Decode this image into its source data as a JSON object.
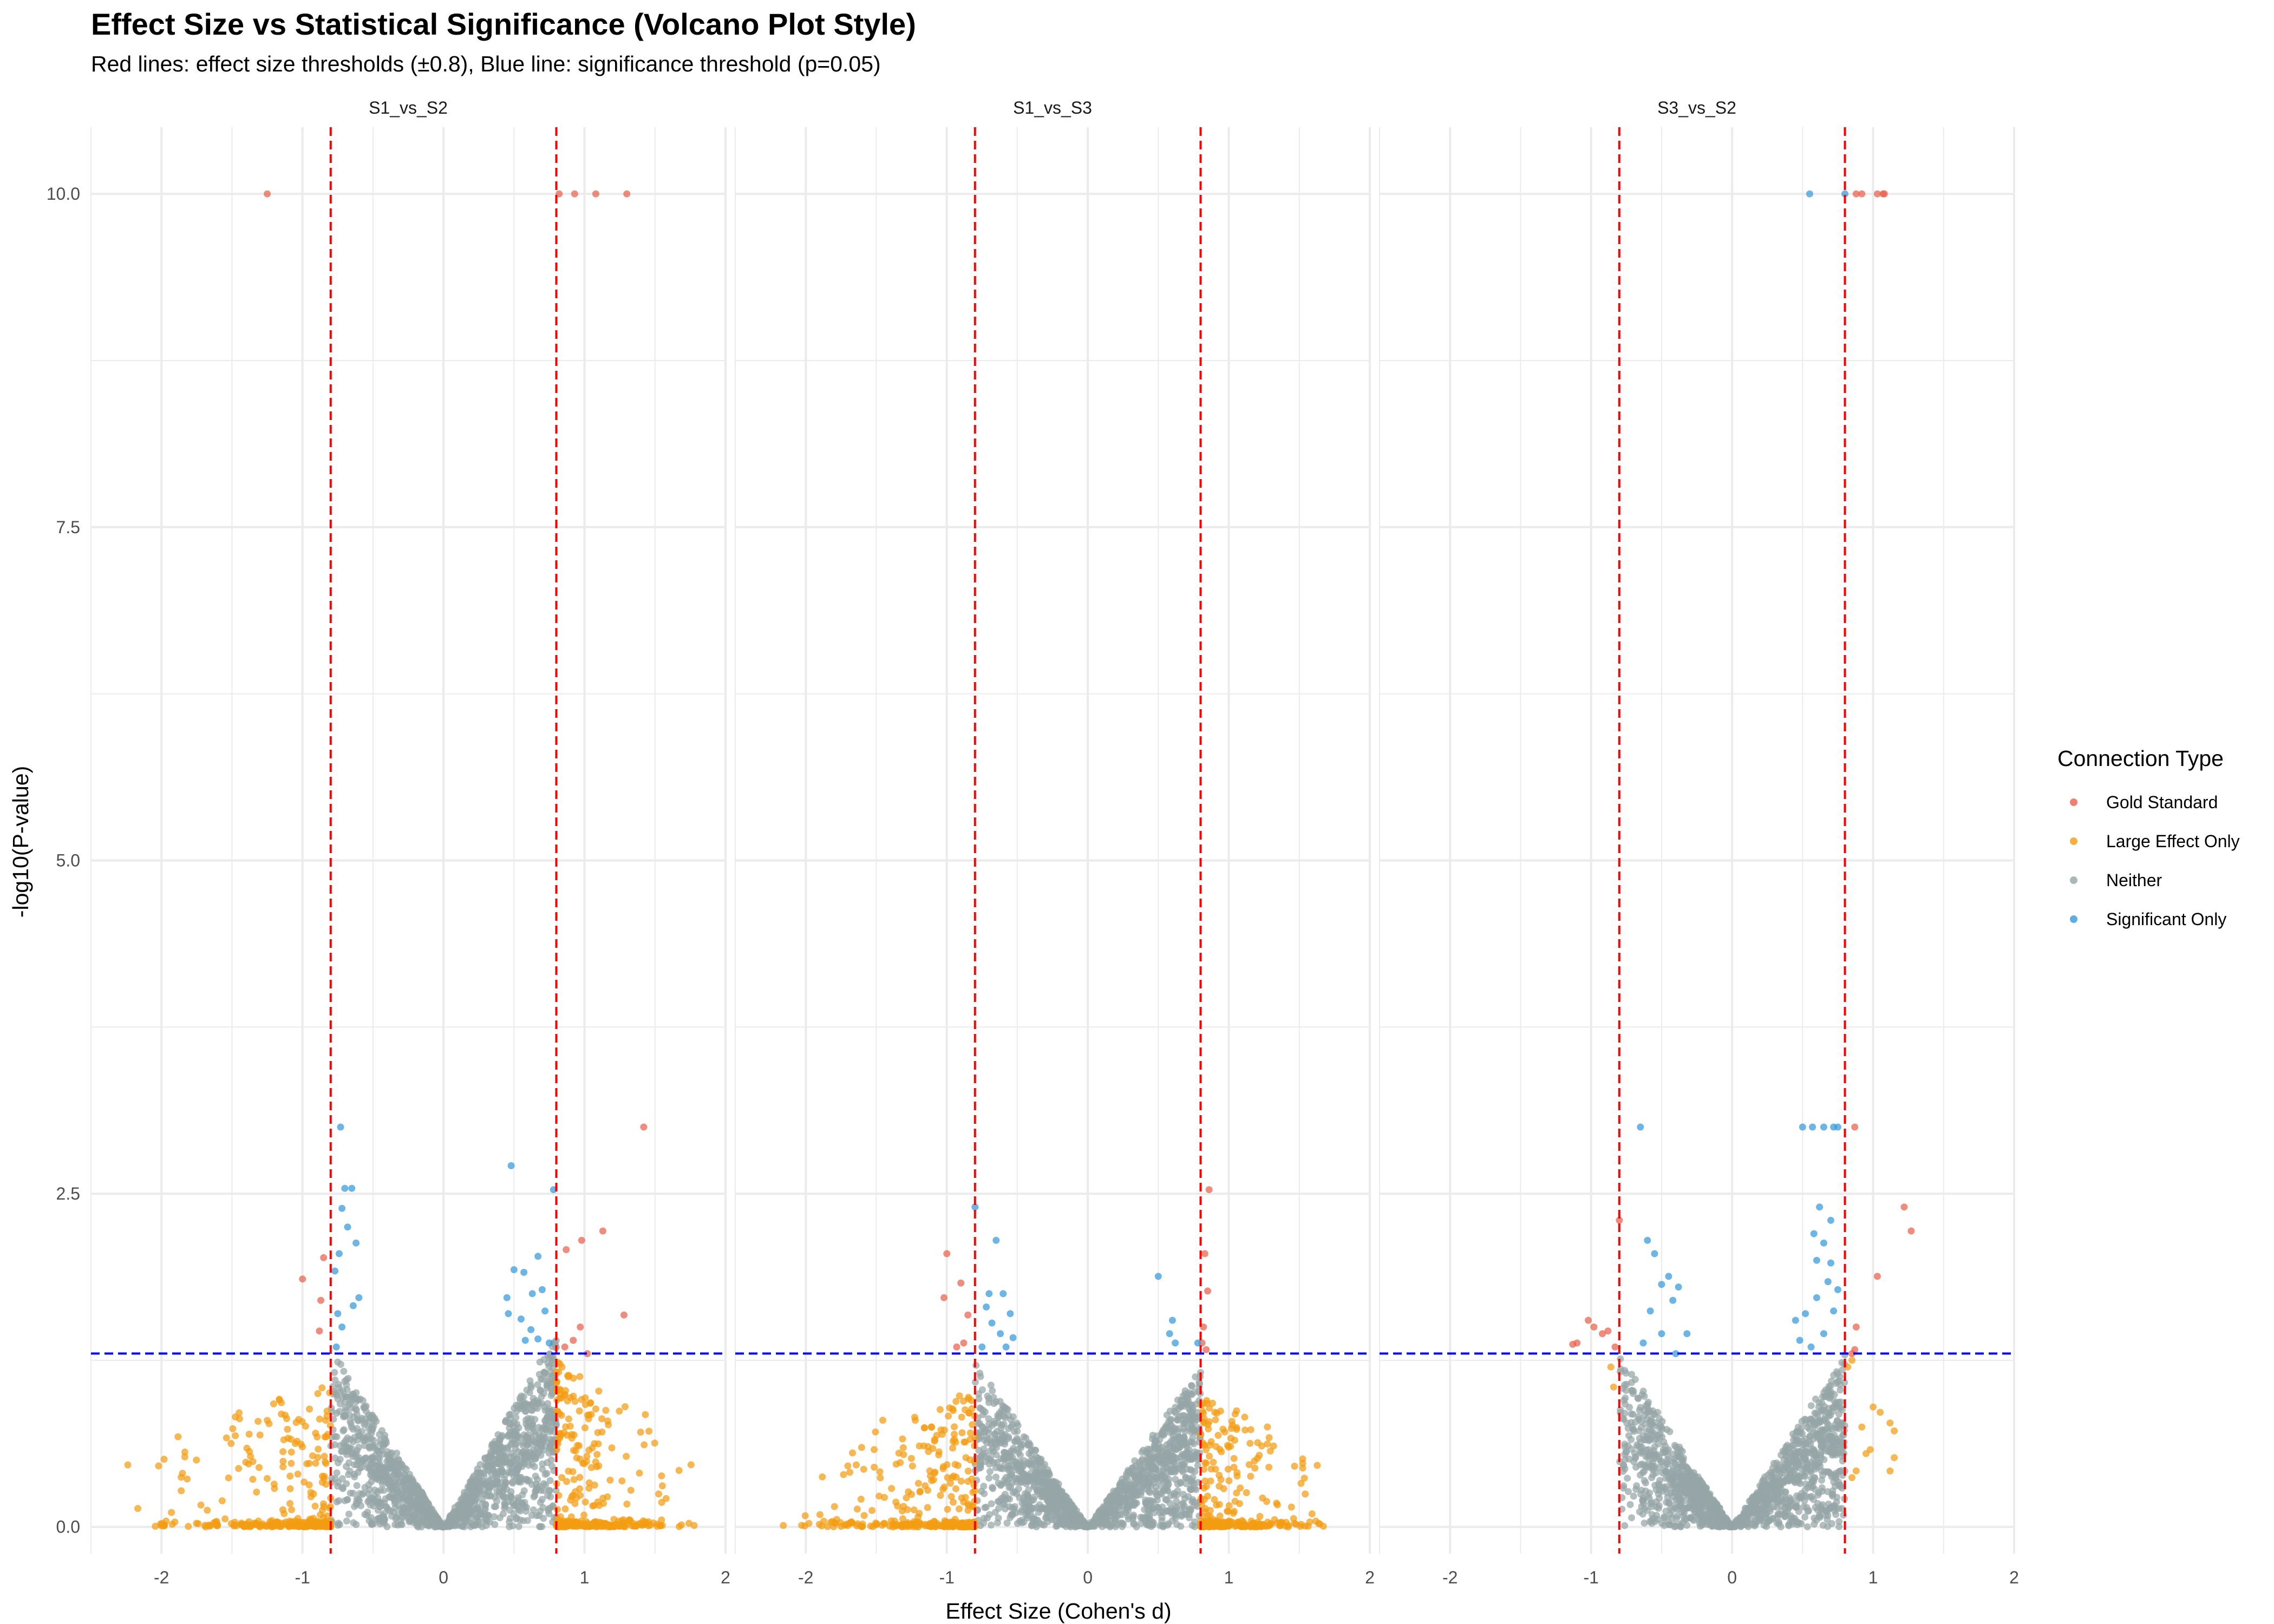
{
  "chart_data": {
    "type": "scatter",
    "title": "Effect Size vs Statistical Significance (Volcano Plot Style)",
    "subtitle": "Red lines: effect size thresholds (±0.8), Blue line: significance threshold (p=0.05)",
    "xlabel": "Effect Size (Cohen's d)",
    "ylabel": "-log10(P-value)",
    "xlim": [
      -2.5,
      2
    ],
    "ylim": [
      -0.2,
      10.5
    ],
    "x_ticks": [
      -2,
      -1,
      0,
      1,
      2
    ],
    "y_ticks": [
      0,
      2.5,
      5,
      7.5,
      10
    ],
    "y_tick_labels": [
      "0.0",
      "2.5",
      "5.0",
      "7.5",
      "10.0"
    ],
    "grid": true,
    "legend": {
      "title": "Connection Type",
      "position": "right",
      "entries": [
        {
          "label": "Gold Standard",
          "color": "#e8604c"
        },
        {
          "label": "Large Effect Only",
          "color": "#f39c12"
        },
        {
          "label": "Neither",
          "color": "#95a5a6"
        },
        {
          "label": "Significant Only",
          "color": "#3498db"
        }
      ]
    },
    "effect_thresholds": [
      -0.8,
      0.8
    ],
    "effect_threshold_color": "#ff0000",
    "significance_threshold": 1.301,
    "significance_threshold_color": "#0000ff",
    "panels": [
      {
        "name": "S1_vs_S2",
        "series": [
          {
            "name": "Gold Standard",
            "points": [
              [
                -1.25,
                10
              ],
              [
                0.82,
                10
              ],
              [
                0.93,
                10
              ],
              [
                1.08,
                10
              ],
              [
                1.3,
                10
              ],
              [
                1.42,
                3.0
              ],
              [
                1.13,
                2.22
              ],
              [
                0.98,
                2.15
              ],
              [
                0.87,
                2.08
              ],
              [
                -1.0,
                1.86
              ],
              [
                -0.85,
                2.02
              ],
              [
                -0.87,
                1.7
              ],
              [
                -0.88,
                1.47
              ],
              [
                1.28,
                1.59
              ],
              [
                0.97,
                1.5
              ],
              [
                0.92,
                1.4
              ],
              [
                1.02,
                1.3
              ],
              [
                0.86,
                1.35
              ]
            ]
          },
          {
            "name": "Significant Only",
            "points": [
              [
                -0.73,
                3.0
              ],
              [
                -0.7,
                2.54
              ],
              [
                -0.65,
                2.54
              ],
              [
                -0.72,
                2.39
              ],
              [
                -0.68,
                2.25
              ],
              [
                -0.62,
                2.13
              ],
              [
                -0.74,
                2.05
              ],
              [
                -0.77,
                1.92
              ],
              [
                -0.6,
                1.72
              ],
              [
                -0.64,
                1.66
              ],
              [
                -0.75,
                1.6
              ],
              [
                -0.72,
                1.5
              ],
              [
                -0.76,
                1.35
              ],
              [
                0.48,
                2.71
              ],
              [
                0.78,
                2.53
              ],
              [
                0.5,
                1.93
              ],
              [
                0.57,
                1.91
              ],
              [
                0.67,
                2.03
              ],
              [
                0.7,
                1.78
              ],
              [
                0.63,
                1.75
              ],
              [
                0.45,
                1.72
              ],
              [
                0.55,
                1.56
              ],
              [
                0.46,
                1.6
              ],
              [
                0.58,
                1.4
              ],
              [
                0.67,
                1.41
              ],
              [
                0.75,
                1.38
              ],
              [
                0.62,
                1.48
              ],
              [
                0.72,
                1.62
              ]
            ]
          }
        ],
        "scatter_clouds": [
          {
            "series": "Neither",
            "branches": [
              {
                "x": [
                  -0.8,
                  0
                ],
                "y_max_at_edge": 1.35
              },
              {
                "x": [
                  0,
                  0.8
                ],
                "y_max_at_edge": 1.45
              }
            ]
          },
          {
            "series": "Large Effect Only",
            "branches": [
              {
                "x": [
                  -2.3,
                  -0.8
                ],
                "y_max": 1.1
              },
              {
                "x": [
                  0.8,
                  1.8
                ],
                "y_max": 1.25
              }
            ]
          }
        ]
      },
      {
        "name": "S1_vs_S3",
        "series": [
          {
            "name": "Gold Standard",
            "points": [
              [
                -1.0,
                2.05
              ],
              [
                -1.02,
                1.72
              ],
              [
                -0.9,
                1.83
              ],
              [
                -0.85,
                1.59
              ],
              [
                -0.88,
                1.38
              ],
              [
                -0.93,
                1.35
              ],
              [
                0.86,
                2.53
              ],
              [
                0.83,
                2.05
              ],
              [
                0.85,
                1.77
              ],
              [
                0.82,
                1.5
              ],
              [
                0.81,
                1.38
              ],
              [
                0.84,
                1.33
              ]
            ]
          },
          {
            "name": "Significant Only",
            "points": [
              [
                -0.8,
                2.4
              ],
              [
                -0.65,
                2.15
              ],
              [
                -0.7,
                1.75
              ],
              [
                -0.6,
                1.75
              ],
              [
                -0.72,
                1.65
              ],
              [
                -0.55,
                1.6
              ],
              [
                -0.68,
                1.53
              ],
              [
                -0.62,
                1.45
              ],
              [
                -0.53,
                1.42
              ],
              [
                -0.75,
                1.35
              ],
              [
                -0.58,
                1.35
              ],
              [
                0.5,
                1.88
              ],
              [
                0.6,
                1.55
              ],
              [
                0.58,
                1.45
              ],
              [
                0.62,
                1.38
              ],
              [
                0.78,
                1.38
              ]
            ]
          }
        ],
        "scatter_clouds": [
          {
            "series": "Neither",
            "branches": [
              {
                "x": [
                  -0.8,
                  0
                ],
                "y_max_at_edge": 1.25
              },
              {
                "x": [
                  0,
                  0.8
                ],
                "y_max_at_edge": 1.2
              }
            ]
          },
          {
            "series": "Large Effect Only",
            "branches": [
              {
                "x": [
                  -2.2,
                  -0.8
                ],
                "y_max": 1.05
              },
              {
                "x": [
                  0.8,
                  1.85
                ],
                "y_max": 1.0
              }
            ]
          }
        ]
      },
      {
        "name": "S3_vs_S2",
        "series": [
          {
            "name": "Gold Standard",
            "points": [
              [
                0.92,
                10
              ],
              [
                0.88,
                10
              ],
              [
                1.03,
                10
              ],
              [
                1.07,
                10
              ],
              [
                1.08,
                10
              ],
              [
                0.87,
                3.0
              ],
              [
                1.22,
                2.4
              ],
              [
                1.27,
                2.22
              ],
              [
                1.03,
                1.88
              ],
              [
                0.88,
                1.5
              ],
              [
                0.87,
                1.33
              ],
              [
                0.85,
                1.3
              ],
              [
                -0.8,
                2.3
              ],
              [
                -1.02,
                1.55
              ],
              [
                -0.98,
                1.5
              ],
              [
                -0.92,
                1.45
              ],
              [
                -0.88,
                1.47
              ],
              [
                -1.1,
                1.38
              ],
              [
                -1.13,
                1.37
              ],
              [
                -0.83,
                1.35
              ]
            ]
          },
          {
            "name": "Significant Only",
            "points": [
              [
                0.55,
                10
              ],
              [
                0.8,
                10
              ],
              [
                0.5,
                3.0
              ],
              [
                0.57,
                3.0
              ],
              [
                0.65,
                3.0
              ],
              [
                0.72,
                3.0
              ],
              [
                0.75,
                3.0
              ],
              [
                0.62,
                2.4
              ],
              [
                0.7,
                2.3
              ],
              [
                0.58,
                2.2
              ],
              [
                0.65,
                2.13
              ],
              [
                0.6,
                2.0
              ],
              [
                0.7,
                1.98
              ],
              [
                0.68,
                1.84
              ],
              [
                0.75,
                1.78
              ],
              [
                0.6,
                1.72
              ],
              [
                0.52,
                1.6
              ],
              [
                0.45,
                1.55
              ],
              [
                0.48,
                1.4
              ],
              [
                0.56,
                1.35
              ],
              [
                0.65,
                1.45
              ],
              [
                0.72,
                1.62
              ],
              [
                -0.65,
                3.0
              ],
              [
                -0.6,
                2.15
              ],
              [
                -0.55,
                2.05
              ],
              [
                -0.45,
                1.88
              ],
              [
                -0.5,
                1.82
              ],
              [
                -0.38,
                1.8
              ],
              [
                -0.42,
                1.7
              ],
              [
                -0.58,
                1.62
              ],
              [
                -0.32,
                1.45
              ],
              [
                -0.5,
                1.45
              ],
              [
                -0.63,
                1.38
              ],
              [
                -0.4,
                1.3
              ]
            ]
          }
        ],
        "scatter_clouds": [
          {
            "series": "Neither",
            "branches": [
              {
                "x": [
                  -0.8,
                  0
                ],
                "y_max_at_edge": 1.3
              },
              {
                "x": [
                  0,
                  0.8
                ],
                "y_max_at_edge": 1.3
              }
            ]
          },
          {
            "series": "Large Effect Only",
            "points": [
              [
                -0.86,
                1.2
              ],
              [
                -0.84,
                1.05
              ],
              [
                0.85,
                1.25
              ],
              [
                0.82,
                1.2
              ],
              [
                1.0,
                0.9
              ],
              [
                1.05,
                0.86
              ],
              [
                0.92,
                0.75
              ],
              [
                0.98,
                0.58
              ],
              [
                0.88,
                0.42
              ],
              [
                0.85,
                0.37
              ],
              [
                1.12,
                0.78
              ],
              [
                1.15,
                0.72
              ],
              [
                1.15,
                0.52
              ],
              [
                1.12,
                0.42
              ],
              [
                0.95,
                0.55
              ]
            ]
          }
        ]
      }
    ]
  }
}
